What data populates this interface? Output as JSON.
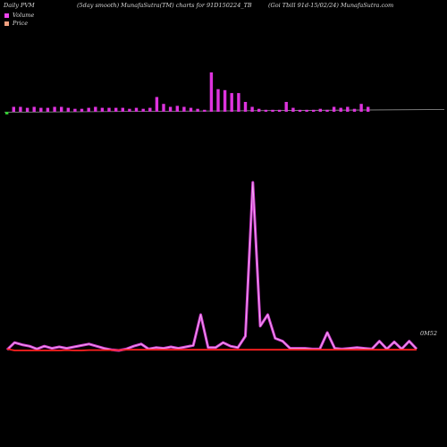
{
  "header": {
    "left": "Daily PVM",
    "center": "(5day smooth) MunafaSutra(TM) charts for 91D150224_TB",
    "right": "(Goi  Tbill 91d-15/02/24) MunafaSutra.com"
  },
  "legend": [
    {
      "label": "Volume",
      "color": "#ee44ee"
    },
    {
      "label": "Price",
      "color": "#f0a080"
    }
  ],
  "colors": {
    "background": "#000000",
    "volume_positive": "#dd33dd",
    "volume_negative": "#33cc33",
    "volume_line_outer": "#d23cd2",
    "volume_line_inner": "#f2aaf2",
    "price_line": "#ff2020"
  },
  "chart_data": {
    "type": "bar",
    "price_last_label": "0M52",
    "volume_bars": [
      5,
      5,
      5,
      4,
      5,
      4,
      4,
      5,
      5,
      4,
      3,
      3,
      4,
      5,
      4,
      4,
      4,
      4,
      3,
      4,
      3,
      4,
      15,
      8,
      5,
      6,
      5,
      4,
      3,
      2,
      40,
      23,
      22,
      19,
      19,
      10,
      5,
      3,
      2,
      2,
      2,
      10,
      4,
      2,
      2,
      2,
      3,
      2,
      5,
      4,
      5,
      3,
      8,
      5
    ],
    "volume_bars_negative_index": [
      0
    ],
    "volume_smooth": [
      22,
      42,
      36,
      32,
      24,
      32,
      26,
      30,
      26,
      30,
      34,
      38,
      32,
      26,
      22,
      20,
      24,
      32,
      38,
      24,
      28,
      26,
      30,
      26,
      30,
      34,
      120,
      28,
      28,
      42,
      32,
      28,
      60,
      490,
      88,
      120,
      54,
      46,
      26,
      26,
      26,
      24,
      24,
      70,
      26,
      24,
      26,
      28,
      26,
      24,
      46,
      24,
      44,
      24,
      46,
      24
    ],
    "price": [
      24,
      20,
      20,
      20,
      20,
      20,
      20,
      20,
      21,
      20,
      20,
      21,
      21,
      21,
      21,
      21,
      22,
      22,
      22,
      22,
      22,
      22,
      22,
      22,
      22,
      22,
      22,
      22,
      22,
      22,
      22,
      22,
      22,
      22,
      22,
      22,
      22,
      22,
      22,
      22,
      22,
      22,
      22,
      22,
      22,
      22,
      22,
      22,
      22,
      22,
      22,
      22,
      22,
      22,
      22,
      22
    ]
  }
}
